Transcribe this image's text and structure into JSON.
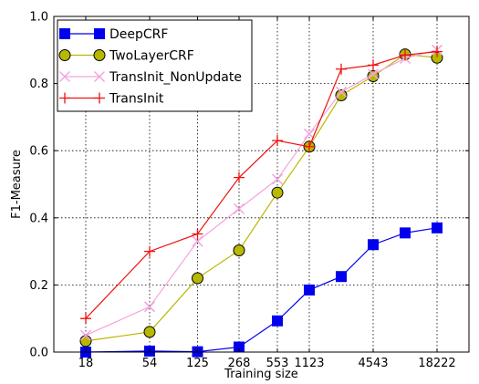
{
  "chart_data": {
    "type": "line",
    "title": "",
    "xlabel": "Training size",
    "ylabel": "F1-Measure",
    "xlim": [
      0,
      13
    ],
    "ylim": [
      0,
      1.0
    ],
    "x_tick_labels": [
      {
        "x": 1,
        "label": "18"
      },
      {
        "x": 3,
        "label": "54"
      },
      {
        "x": 4.5,
        "label": "125"
      },
      {
        "x": 5.8,
        "label": "268"
      },
      {
        "x": 7,
        "label": "553"
      },
      {
        "x": 8,
        "label": "1123"
      },
      {
        "x": 10,
        "label": "4543"
      },
      {
        "x": 12,
        "label": "18222"
      }
    ],
    "y_ticks": [
      0.0,
      0.2,
      0.4,
      0.6,
      0.8,
      1.0
    ],
    "y_tick_labels": [
      "0.0",
      "0.2",
      "0.4",
      "0.6",
      "0.8",
      "1.0"
    ],
    "grid": true,
    "legend_position": "top-left",
    "x": [
      1,
      3,
      4.5,
      5.8,
      7,
      8,
      9,
      10,
      11,
      12
    ],
    "series": [
      {
        "name": "DeepCRF",
        "color": "#0000ee",
        "marker": "square",
        "values": [
          0.0,
          0.003,
          0.001,
          0.015,
          0.093,
          0.185,
          0.225,
          0.32,
          0.355,
          0.37
        ]
      },
      {
        "name": "TwoLayerCRF",
        "color": "#b8b800",
        "marker": "circle",
        "values": [
          0.033,
          0.06,
          0.22,
          0.303,
          0.475,
          0.612,
          0.765,
          0.822,
          0.887,
          0.877
        ]
      },
      {
        "name": "TransInit_NonUpdate",
        "color": "#f5a3de",
        "marker": "x",
        "values": [
          0.05,
          0.135,
          0.33,
          0.427,
          0.515,
          0.65,
          0.775,
          0.828,
          0.875,
          0.9
        ]
      },
      {
        "name": "TransInit",
        "color": "#ee1111",
        "marker": "plus",
        "values": [
          0.1,
          0.3,
          0.352,
          0.52,
          0.63,
          0.612,
          0.843,
          0.855,
          0.885,
          0.895
        ]
      }
    ]
  }
}
